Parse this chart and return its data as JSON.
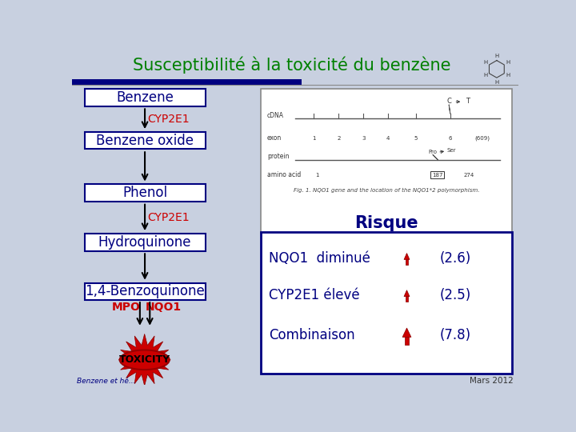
{
  "title": "Susceptibilité à la toxicité du benzène",
  "title_color": "#008000",
  "title_fontsize": 15,
  "bg_color": "#c8d0e0",
  "box_fill": "#ffffff",
  "box_edge_blue": "#000080",
  "flow_items": [
    "Benzene",
    "Benzene oxide",
    "Phenol",
    "Hydroquinone",
    "1,4-Benzoquinone"
  ],
  "cyp_labels": [
    "CYP2E1",
    null,
    "CYP2E1",
    null,
    null
  ],
  "flow_text_color": "#000080",
  "cyp_color": "#cc0000",
  "risque_title": "Risque",
  "risque_color": "#000080",
  "risk_items": [
    "NQO1  diminué",
    "CYP2E1 élevé",
    "Combinaison"
  ],
  "risk_values": [
    "(2.6)",
    "(2.5)",
    "(7.8)"
  ],
  "risk_text_color": "#000080",
  "arrow_color": "#cc0000",
  "mpo_label": "MPO",
  "nqo1_label": "NQO1",
  "toxicity_label": "TOXICITY",
  "footer_text": "Benzene et hé...",
  "date_text": "Mars 2012",
  "header_bar_color": "#000080",
  "sep_line_color": "#888888",
  "gene_fig_caption": "Fig. 1. NQO1 gene and the location of the NQO1*2 polymorphism."
}
